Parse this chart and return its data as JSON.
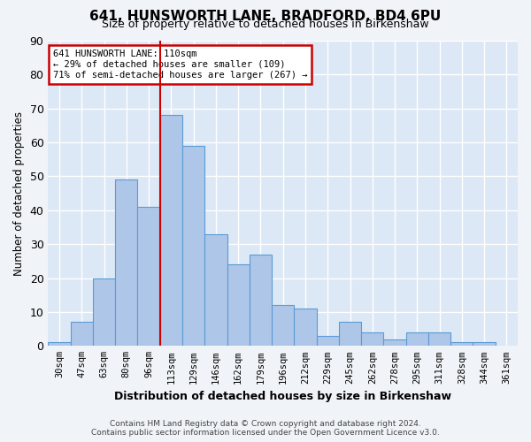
{
  "title": "641, HUNSWORTH LANE, BRADFORD, BD4 6PU",
  "subtitle": "Size of property relative to detached houses in Birkenshaw",
  "xlabel": "Distribution of detached houses by size in Birkenshaw",
  "ylabel": "Number of detached properties",
  "categories": [
    "30sqm",
    "47sqm",
    "63sqm",
    "80sqm",
    "96sqm",
    "113sqm",
    "129sqm",
    "146sqm",
    "162sqm",
    "179sqm",
    "196sqm",
    "212sqm",
    "229sqm",
    "245sqm",
    "262sqm",
    "278sqm",
    "295sqm",
    "311sqm",
    "328sqm",
    "344sqm",
    "361sqm"
  ],
  "values": [
    1,
    7,
    20,
    49,
    41,
    68,
    59,
    33,
    24,
    27,
    12,
    11,
    3,
    7,
    4,
    2,
    4,
    4,
    1,
    1,
    0
  ],
  "bar_color": "#aec6e8",
  "bar_edge_color": "#5b9bd5",
  "vline_index": 5,
  "vline_color": "#cc0000",
  "annotation_lines": [
    "641 HUNSWORTH LANE: 110sqm",
    "← 29% of detached houses are smaller (109)",
    "71% of semi-detached houses are larger (267) →"
  ],
  "annotation_box_color": "#cc0000",
  "ylim": [
    0,
    90
  ],
  "yticks": [
    0,
    10,
    20,
    30,
    40,
    50,
    60,
    70,
    80,
    90
  ],
  "background_color": "#dce8f5",
  "grid_color": "#ffffff",
  "footer_line1": "Contains HM Land Registry data © Crown copyright and database right 2024.",
  "footer_line2": "Contains public sector information licensed under the Open Government Licence v3.0."
}
